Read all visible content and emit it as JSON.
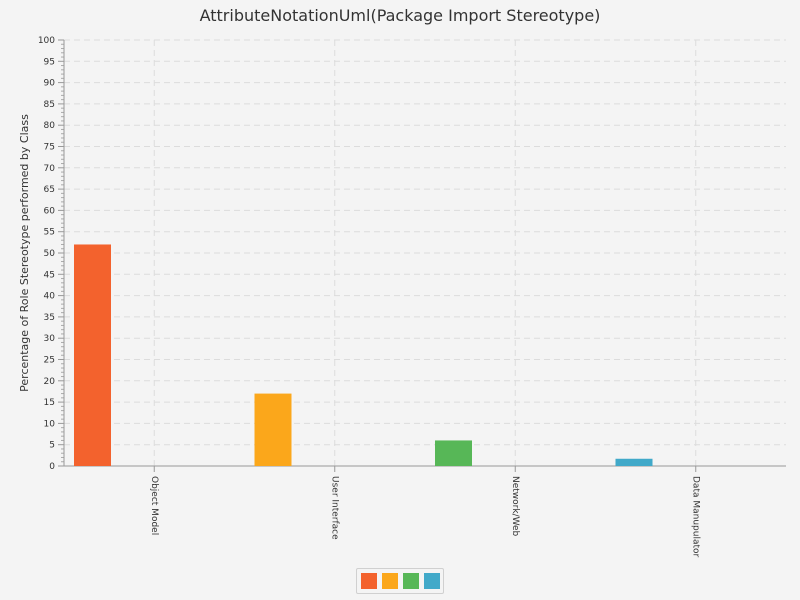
{
  "chart_data": {
    "type": "bar",
    "title": "AttributeNotationUml(Package Import Stereotype)",
    "xlabel": "",
    "ylabel": "Percentage of Role Stereotype performed by Class",
    "categories": [
      "Object Model",
      "User Interface",
      "Network/Web",
      "Data Manupulator"
    ],
    "values": [
      52,
      17,
      6,
      1.7
    ],
    "colors": [
      "#f3622d",
      "#fba71b",
      "#57b757",
      "#41a9c9"
    ],
    "ylim": [
      0,
      100
    ],
    "ytick_step": 5,
    "grid": true,
    "legend_placement": "bottom-center"
  }
}
